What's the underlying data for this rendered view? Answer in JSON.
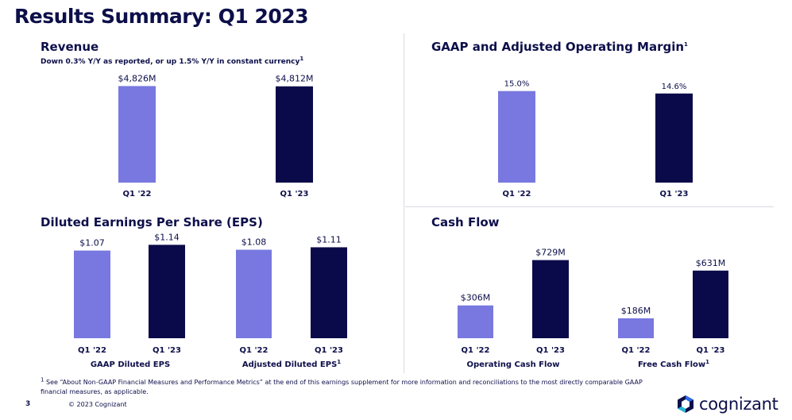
{
  "page_title": "Results Summary: Q1 2023",
  "colors": {
    "q1_22": "#7878e0",
    "q1_23": "#0a0a4a",
    "text": "#0d0f4a",
    "divider": "#d9d9e3"
  },
  "revenue": {
    "title": "Revenue",
    "subtitle": "Down 0.3% Y/Y as reported, or up 1.5% Y/Y in constant currency",
    "subtitle_sup": "1"
  },
  "margin": {
    "title": "GAAP and Adjusted Operating Margin",
    "title_sup": "1"
  },
  "eps": {
    "title": "Diluted Earnings Per Share (EPS)"
  },
  "cashflow": {
    "title": "Cash Flow"
  },
  "chart_data": [
    {
      "id": "revenue",
      "type": "bar",
      "categories": [
        "Q1 '22",
        "Q1 '23"
      ],
      "values": [
        4826,
        4812
      ],
      "unit": "$M",
      "ylim": [
        0,
        5000
      ],
      "data_labels": [
        "$4,826M",
        "$4,812M"
      ],
      "colors": [
        "#7878e0",
        "#0a0a4a"
      ]
    },
    {
      "id": "margin",
      "type": "bar",
      "categories": [
        "Q1 '22",
        "Q1 '23"
      ],
      "values": [
        15.0,
        14.6
      ],
      "unit": "%",
      "ylim": [
        0,
        16
      ],
      "data_labels": [
        "15.0%",
        "14.6%"
      ],
      "colors": [
        "#7878e0",
        "#0a0a4a"
      ]
    },
    {
      "id": "eps",
      "type": "bar",
      "groups": [
        {
          "name": "GAAP Diluted EPS",
          "categories": [
            "Q1 '22",
            "Q1 '23"
          ],
          "values": [
            1.07,
            1.14
          ],
          "data_labels": [
            "$1.07",
            "$1.14"
          ]
        },
        {
          "name": "Adjusted Diluted EPS",
          "name_sup": "1",
          "categories": [
            "Q1 '22",
            "Q1 '23"
          ],
          "values": [
            1.08,
            1.11
          ],
          "data_labels": [
            "$1.08",
            "$1.11"
          ]
        }
      ],
      "ylim": [
        0,
        1.25
      ],
      "colors": [
        "#7878e0",
        "#0a0a4a"
      ]
    },
    {
      "id": "cashflow",
      "type": "bar",
      "groups": [
        {
          "name": "Operating Cash Flow",
          "categories": [
            "Q1 '22",
            "Q1 '23"
          ],
          "values": [
            306,
            729
          ],
          "data_labels": [
            "$306M",
            "$729M"
          ]
        },
        {
          "name": "Free Cash Flow",
          "name_sup": "1",
          "categories": [
            "Q1 '22",
            "Q1 '23"
          ],
          "values": [
            186,
            631
          ],
          "data_labels": [
            "$186M",
            "$631M"
          ]
        }
      ],
      "unit": "$M",
      "ylim": [
        0,
        800
      ],
      "colors": [
        "#7878e0",
        "#0a0a4a"
      ]
    }
  ],
  "footnote": {
    "marker": "1",
    "text": "See “About Non-GAAP Financial Measures and Performance Metrics” at the end of this earnings supplement for more information and reconciliations to the most directly comparable GAAP financial measures, as applicable."
  },
  "page_number": "3",
  "copyright": "© 2023 Cognizant",
  "logo_text": "cognizant"
}
